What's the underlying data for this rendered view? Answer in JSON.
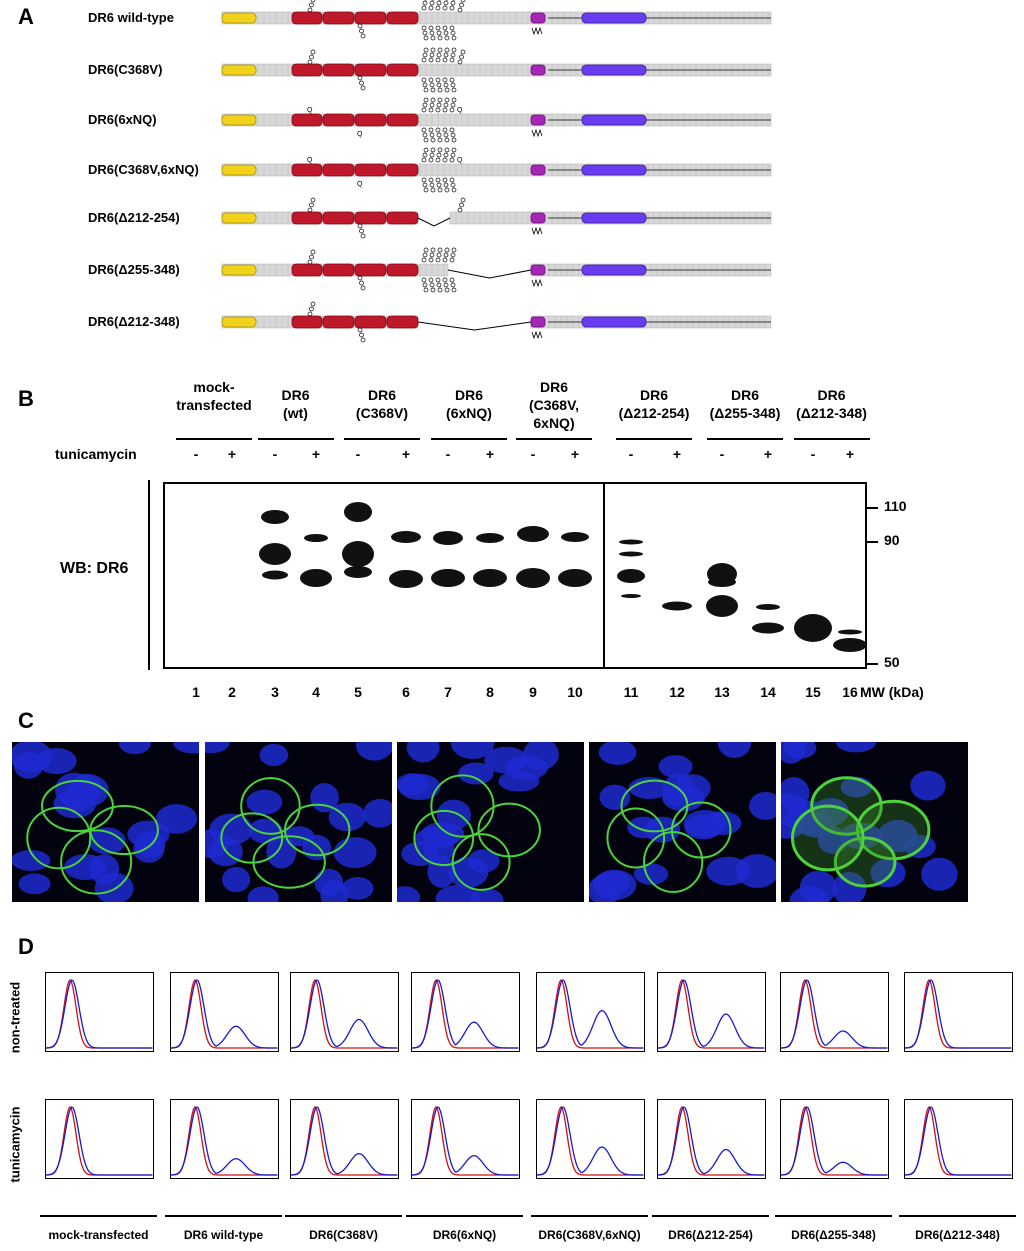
{
  "panels": {
    "a": "A",
    "b": "B",
    "c": "C",
    "d": "D"
  },
  "panel_a": {
    "constructs": [
      {
        "label": "DR6 wild-type",
        "variant": "wt"
      },
      {
        "label": "DR6(C368V)",
        "variant": "c368v"
      },
      {
        "label": "DR6(6xNQ)",
        "variant": "nq"
      },
      {
        "label": "DR6(C368V,6xNQ)",
        "variant": "c368v_nq"
      },
      {
        "label": "DR6(Δ212-254)",
        "variant": "d212_254"
      },
      {
        "label": "DR6(Δ255-348)",
        "variant": "d255_348"
      },
      {
        "label": "DR6(Δ212-348)",
        "variant": "d212_348"
      }
    ],
    "domain_colors": {
      "signal": "#f2d21b",
      "crd": "#c0182b",
      "tm": "#a626b6",
      "death": "#6a3cf0",
      "stalk": "#d8d8d8"
    }
  },
  "panel_b": {
    "treatment_label": "tunicamycin",
    "wb_label": "WB: DR6",
    "groups": [
      {
        "label": "mock-\ntransfected"
      },
      {
        "label": "DR6\n(wt)"
      },
      {
        "label": "DR6\n(C368V)"
      },
      {
        "label": "DR6\n(6xNQ)"
      },
      {
        "label": "DR6\n(C368V,\n6xNQ)"
      },
      {
        "label": "DR6\n(Δ212-254)"
      },
      {
        "label": "DR6\n(Δ255-348)"
      },
      {
        "label": "DR6\n(Δ212-348)"
      }
    ],
    "signs": [
      "-",
      "+",
      "-",
      "+",
      "-",
      "+",
      "-",
      "+",
      "-",
      "+",
      "-",
      "+",
      "-",
      "+",
      "-",
      "+"
    ],
    "lanes": [
      "1",
      "2",
      "3",
      "4",
      "5",
      "6",
      "7",
      "8",
      "9",
      "10",
      "11",
      "12",
      "13",
      "14",
      "15",
      "16"
    ],
    "mw_markers": [
      "110",
      "90",
      "50"
    ],
    "mw_label": "MW (kDa)"
  },
  "panel_d": {
    "rows": [
      "non-treated",
      "tunicamycin"
    ],
    "columns": [
      {
        "label": "mock-transfected",
        "peak2": 0.0
      },
      {
        "label": "DR6 wild-type",
        "peak2": 0.32
      },
      {
        "label": "DR6(C368V)",
        "peak2": 0.42
      },
      {
        "label": "DR6(6xNQ)",
        "peak2": 0.38
      },
      {
        "label": "DR6(C368V,6xNQ)",
        "peak2": 0.55
      },
      {
        "label": "DR6(Δ212-254)",
        "peak2": 0.5
      },
      {
        "label": "DR6(Δ255-348)",
        "peak2": 0.25
      },
      {
        "label": "DR6(Δ212-348)",
        "peak2": 0.0
      }
    ]
  }
}
